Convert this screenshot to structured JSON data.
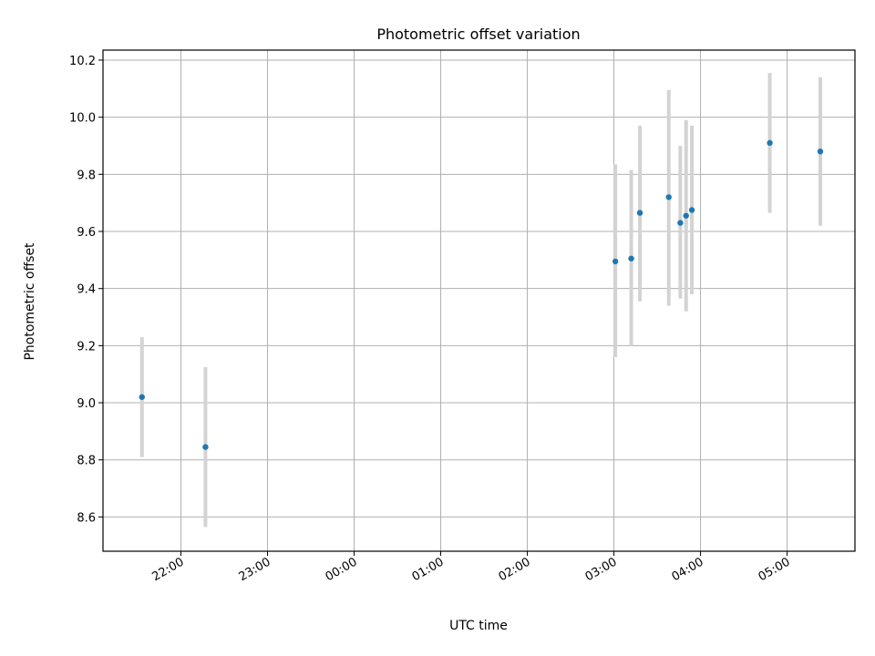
{
  "chart_data": {
    "type": "scatter",
    "title": "Photometric offset variation",
    "xlabel": "UTC time",
    "ylabel": "Photometric offset",
    "x_axis": {
      "unit": "UTC time",
      "ticks": [
        "22:00",
        "23:00",
        "00:00",
        "01:00",
        "02:00",
        "03:00",
        "04:00",
        "05:00"
      ],
      "range": [
        "21:06",
        "05:47"
      ]
    },
    "y_axis": {
      "ticks": [
        "8.6",
        "8.8",
        "9.0",
        "9.2",
        "9.4",
        "9.6",
        "9.8",
        "10.0",
        "10.2"
      ],
      "range": [
        8.48,
        10.235
      ]
    },
    "grid": true,
    "marker_color": "#1f77b4",
    "errorbar_color": "#d3d3d3",
    "points": [
      {
        "x": "21:33",
        "y": 9.02,
        "err_low": 8.81,
        "err_high": 9.23
      },
      {
        "x": "22:17",
        "y": 8.845,
        "err_low": 8.565,
        "err_high": 9.125
      },
      {
        "x": "03:01",
        "y": 9.495,
        "err_low": 9.16,
        "err_high": 9.835
      },
      {
        "x": "03:12",
        "y": 9.505,
        "err_low": 9.2,
        "err_high": 9.815
      },
      {
        "x": "03:18",
        "y": 9.665,
        "err_low": 9.355,
        "err_high": 9.97
      },
      {
        "x": "03:38",
        "y": 9.72,
        "err_low": 9.34,
        "err_high": 10.095
      },
      {
        "x": "03:46",
        "y": 9.63,
        "err_low": 9.365,
        "err_high": 9.9
      },
      {
        "x": "03:50",
        "y": 9.655,
        "err_low": 9.32,
        "err_high": 9.99
      },
      {
        "x": "03:54",
        "y": 9.675,
        "err_low": 9.38,
        "err_high": 9.97
      },
      {
        "x": "04:48",
        "y": 9.91,
        "err_low": 9.665,
        "err_high": 10.155
      },
      {
        "x": "05:23",
        "y": 9.88,
        "err_low": 9.62,
        "err_high": 10.14
      }
    ]
  }
}
